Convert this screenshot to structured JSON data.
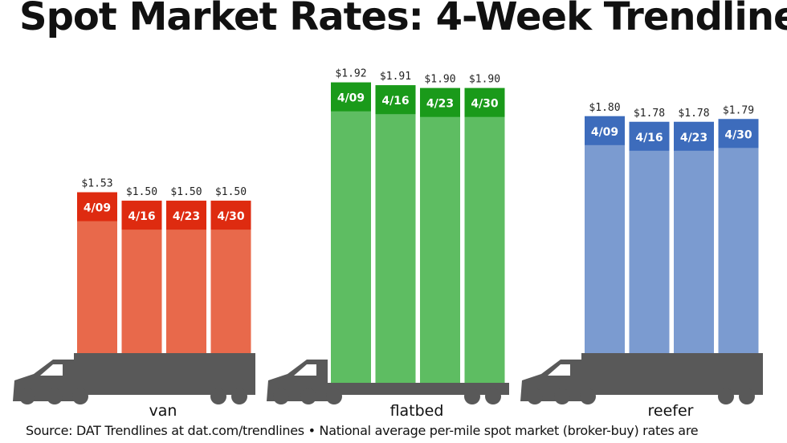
{
  "title": "Spot Market Rates: 4-Week Trendlines",
  "footer": "Source: DAT Trendlines at dat.com/trendlines • National average per-mile spot market (broker-buy) rates are",
  "chart_data": [
    {
      "type": "bar",
      "group": "van",
      "color": "#e8694b",
      "header_color": "#de2b10",
      "categories": [
        "4/09",
        "4/16",
        "4/23",
        "4/30"
      ],
      "values": [
        1.53,
        1.5,
        1.5,
        1.5
      ],
      "value_labels": [
        "$1.53",
        "$1.50",
        "$1.50",
        "$1.50"
      ]
    },
    {
      "type": "bar",
      "group": "flatbed",
      "color": "#5ebd62",
      "header_color": "#1a9a1a",
      "categories": [
        "4/09",
        "4/16",
        "4/23",
        "4/30"
      ],
      "values": [
        1.92,
        1.91,
        1.9,
        1.9
      ],
      "value_labels": [
        "$1.92",
        "$1.91",
        "$1.90",
        "$1.90"
      ]
    },
    {
      "type": "bar",
      "group": "reefer",
      "color": "#7b9bd0",
      "header_color": "#3d6cbc",
      "categories": [
        "4/09",
        "4/16",
        "4/23",
        "4/30"
      ],
      "values": [
        1.8,
        1.78,
        1.78,
        1.79
      ],
      "value_labels": [
        "$1.80",
        "$1.78",
        "$1.78",
        "$1.79"
      ]
    }
  ],
  "truck_color": "#595959"
}
